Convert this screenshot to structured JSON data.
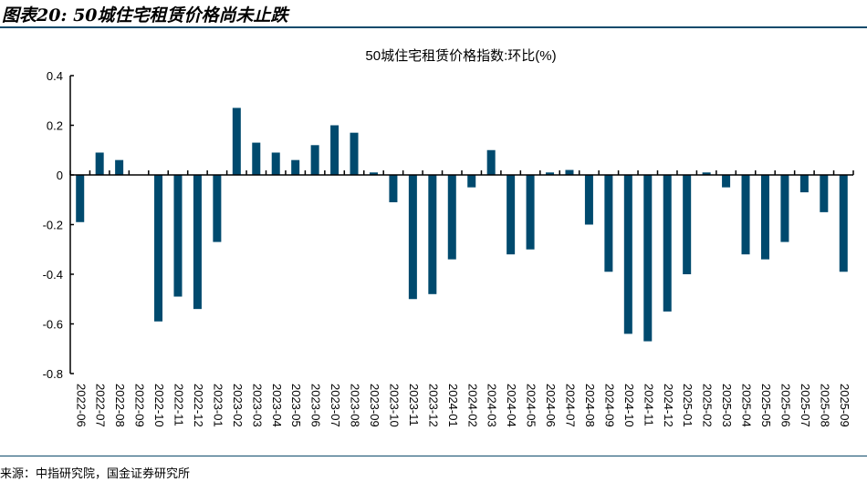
{
  "figure": {
    "title": "图表20: 50城住宅租赁价格尚未止跌",
    "source": "来源：中指研究院，国金证券研究所"
  },
  "chart_data": {
    "type": "bar",
    "title": "50城住宅租赁价格指数:环比(%)",
    "xlabel": "",
    "ylabel": "",
    "ylim": [
      -0.8,
      0.4
    ],
    "yticks": [
      0.4,
      0.2,
      0,
      -0.2,
      -0.4,
      -0.6,
      -0.8
    ],
    "ytick_labels": [
      "0.4",
      "0.2",
      "0",
      "-0.2",
      "-0.4",
      "-0.6",
      "-0.8"
    ],
    "grid": false,
    "legend": "none",
    "bar_color": "#004a6e",
    "categories": [
      "2022-06",
      "2022-07",
      "2022-08",
      "2022-09",
      "2022-10",
      "2022-11",
      "2022-12",
      "2023-01",
      "2023-02",
      "2023-03",
      "2023-04",
      "2023-05",
      "2023-06",
      "2023-07",
      "2023-08",
      "2023-09",
      "2023-10",
      "2023-11",
      "2023-12",
      "2024-01",
      "2024-02",
      "2024-03",
      "2024-04",
      "2024-05",
      "2024-06",
      "2024-07",
      "2024-08",
      "2024-09",
      "2024-10",
      "2024-11",
      "2024-12",
      "2025-01",
      "2025-02",
      "2025-03",
      "2025-04",
      "2025-05",
      "2025-06",
      "2025-07",
      "2025-08",
      "2025-09"
    ],
    "values": [
      -0.19,
      0.09,
      0.06,
      0.0,
      -0.59,
      -0.49,
      -0.54,
      -0.27,
      0.27,
      0.13,
      0.09,
      0.06,
      0.12,
      0.2,
      0.17,
      0.01,
      -0.11,
      -0.5,
      -0.48,
      -0.34,
      -0.05,
      0.1,
      -0.32,
      -0.3,
      0.01,
      0.02,
      -0.2,
      -0.39,
      -0.64,
      -0.67,
      -0.55,
      -0.4,
      0.01,
      -0.05,
      -0.32,
      -0.34,
      -0.27,
      -0.07,
      -0.15,
      -0.39
    ]
  }
}
